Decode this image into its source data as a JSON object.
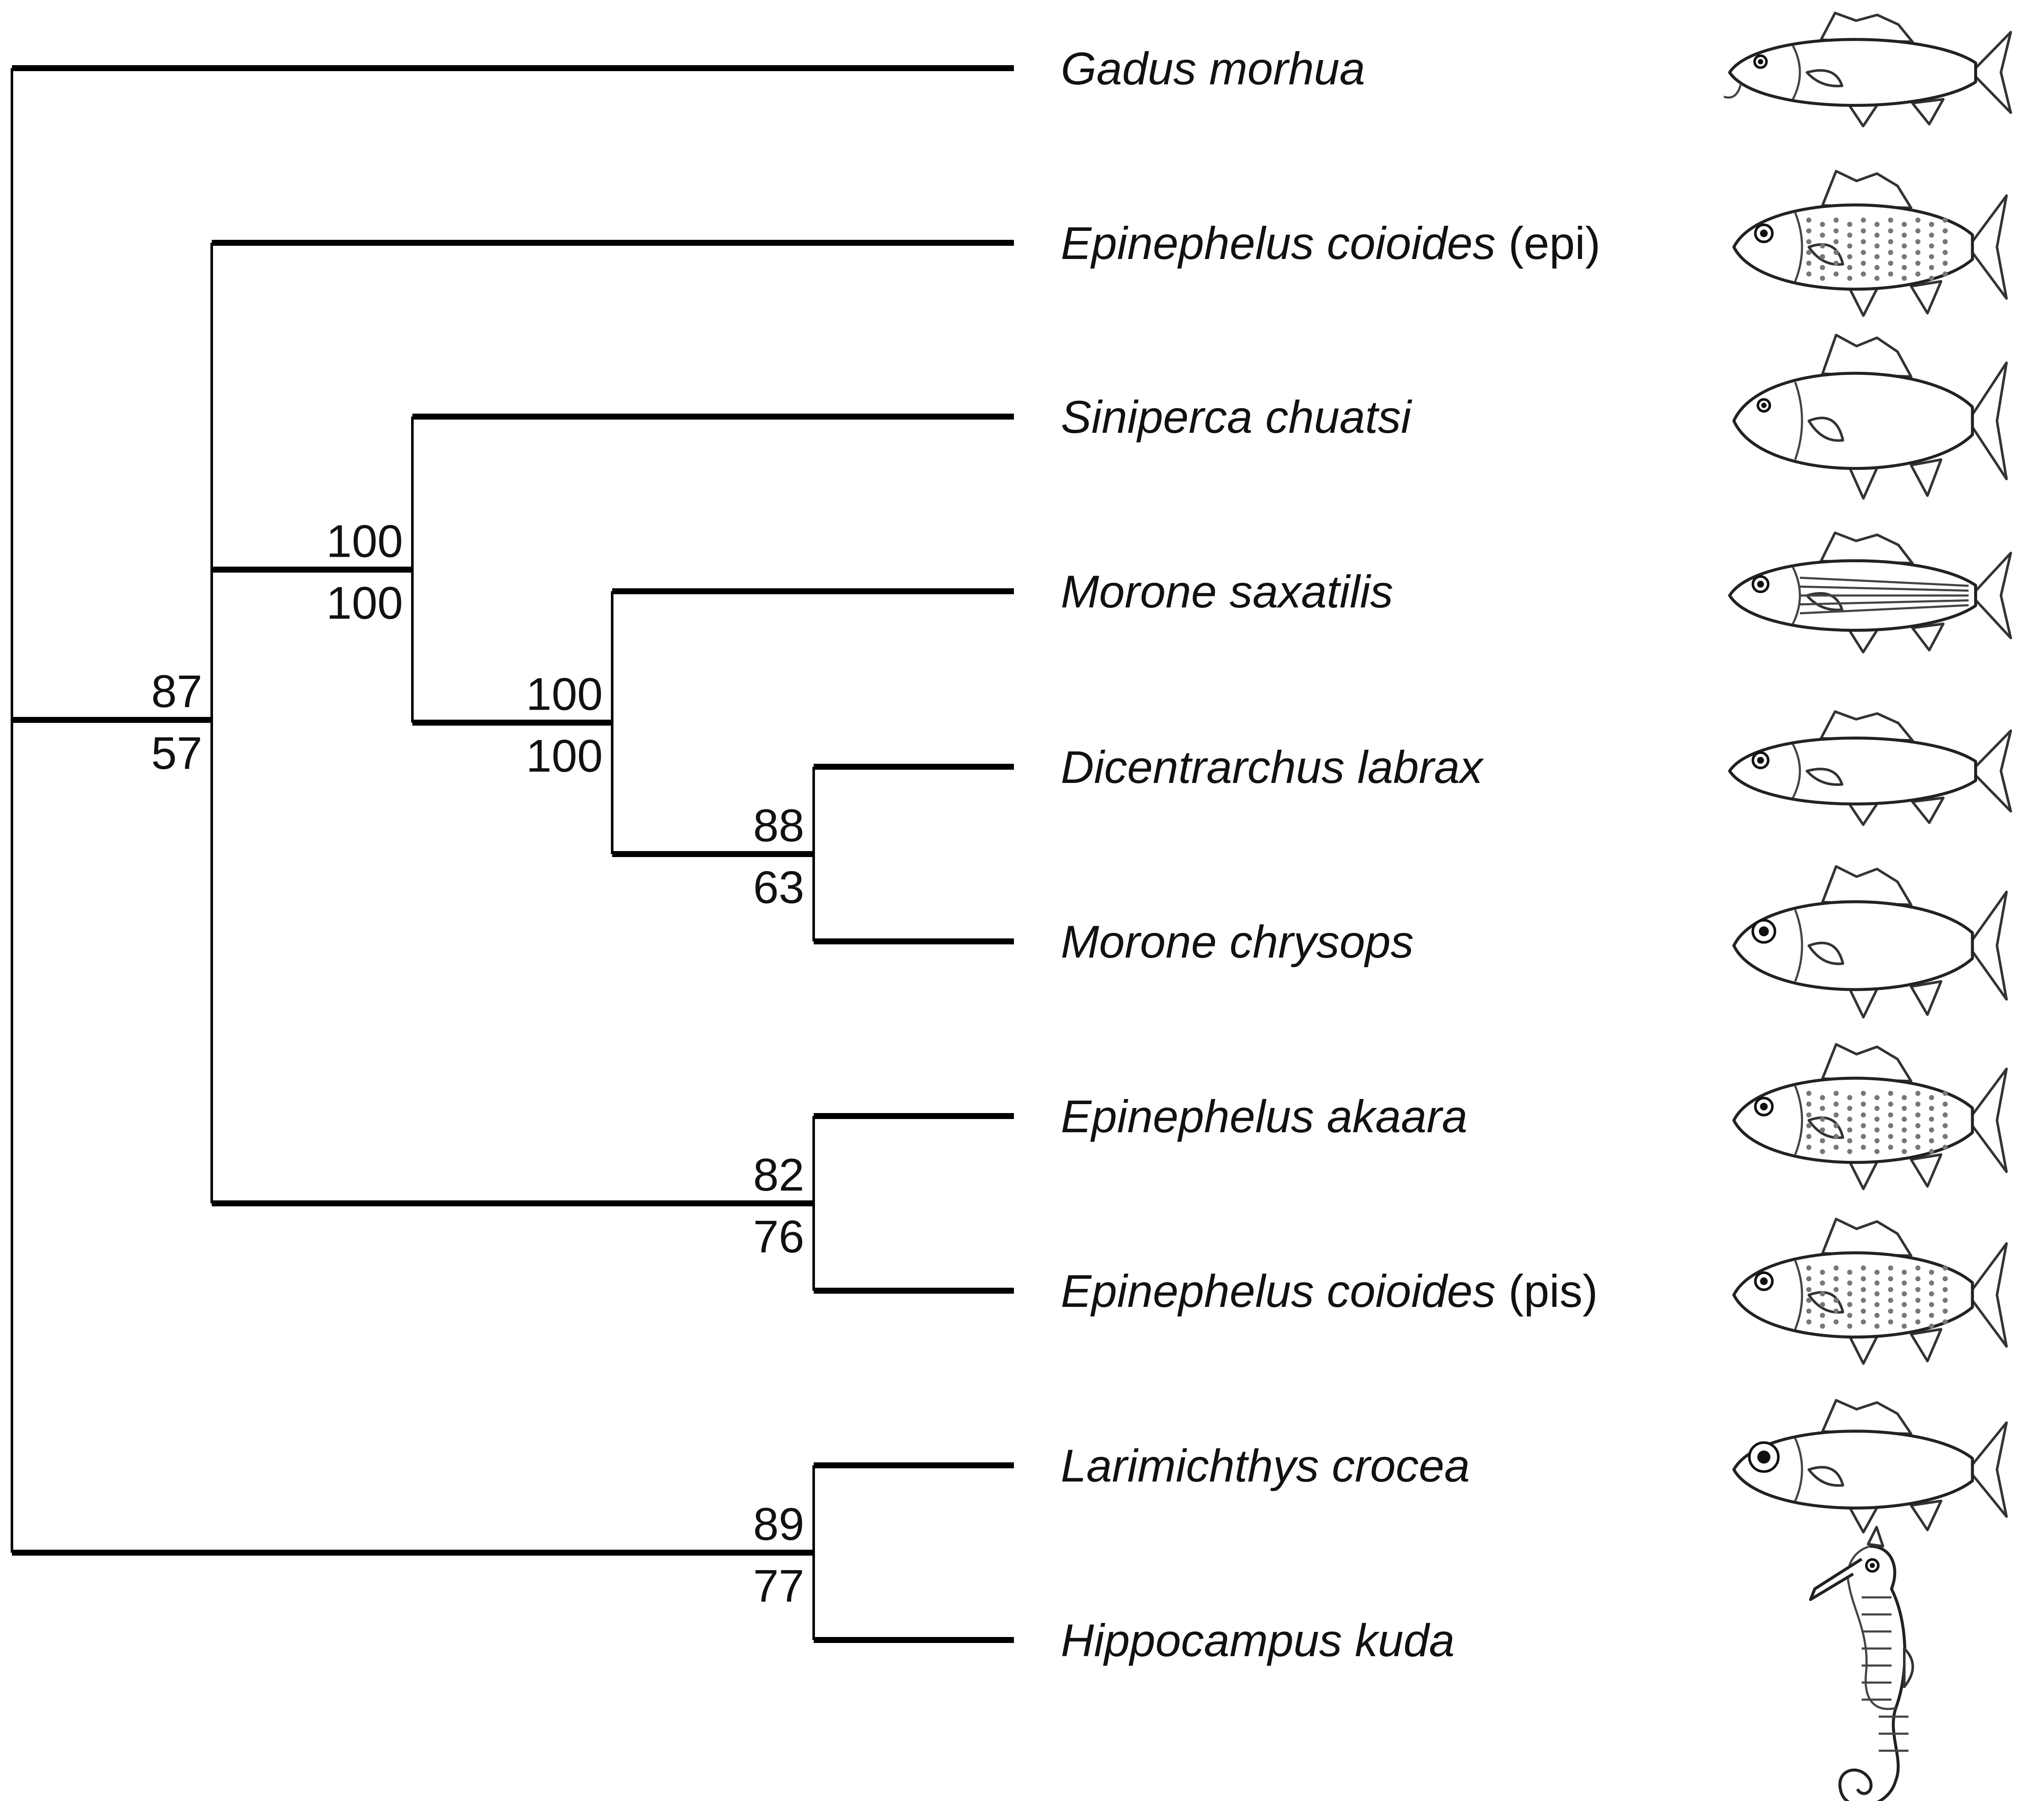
{
  "tree": {
    "taxa": [
      {
        "id": "gadus",
        "genus_species": "Gadus morhua",
        "suffix": "",
        "drawing": "cod-drawing"
      },
      {
        "id": "epi_epi",
        "genus_species": "Epinephelus coioides",
        "suffix": "(epi)",
        "drawing": "grouper-drawing"
      },
      {
        "id": "siniperca",
        "genus_species": "Siniperca chuatsi",
        "suffix": "",
        "drawing": "mandarin-fish-drawing"
      },
      {
        "id": "morone_sax",
        "genus_species": "Morone saxatilis",
        "suffix": "",
        "drawing": "striped-bass-drawing"
      },
      {
        "id": "dicentrarchus",
        "genus_species": "Dicentrarchus labrax",
        "suffix": "",
        "drawing": "sea-bass-drawing"
      },
      {
        "id": "morone_chr",
        "genus_species": "Morone chrysops",
        "suffix": "",
        "drawing": "white-bass-drawing"
      },
      {
        "id": "epi_akaara",
        "genus_species": "Epinephelus akaara",
        "suffix": "",
        "drawing": "grouper-drawing"
      },
      {
        "id": "epi_pis",
        "genus_species": "Epinephelus coioides",
        "suffix": "(pis)",
        "drawing": "grouper-drawing"
      },
      {
        "id": "larimichthys",
        "genus_species": "Larimichthys crocea",
        "suffix": "",
        "drawing": "croaker-drawing"
      },
      {
        "id": "hippocampus",
        "genus_species": "Hippocampus kuda",
        "suffix": "",
        "drawing": "seahorse-drawing"
      }
    ],
    "clades": [
      {
        "id": "c_ingroup",
        "children": [
          "epi_epi",
          "c_sini_group",
          "c_akaara"
        ],
        "support_top": "87",
        "support_bottom": "57"
      },
      {
        "id": "c_sini_group",
        "children": [
          "siniperca",
          "c_morone_group"
        ],
        "support_top": "100",
        "support_bottom": "100"
      },
      {
        "id": "c_morone_group",
        "children": [
          "morone_sax",
          "c_dic_chr"
        ],
        "support_top": "100",
        "support_bottom": "100"
      },
      {
        "id": "c_dic_chr",
        "children": [
          "dicentrarchus",
          "morone_chr"
        ],
        "support_top": "88",
        "support_bottom": "63"
      },
      {
        "id": "c_akaara",
        "children": [
          "epi_akaara",
          "epi_pis"
        ],
        "support_top": "82",
        "support_bottom": "76"
      },
      {
        "id": "c_lar_hip",
        "children": [
          "larimichthys",
          "hippocampus"
        ],
        "support_top": "89",
        "support_bottom": "77"
      },
      {
        "id": "root",
        "children": [
          "gadus",
          "c_ingroup",
          "c_lar_hip"
        ],
        "support_top": "",
        "support_bottom": ""
      }
    ]
  }
}
